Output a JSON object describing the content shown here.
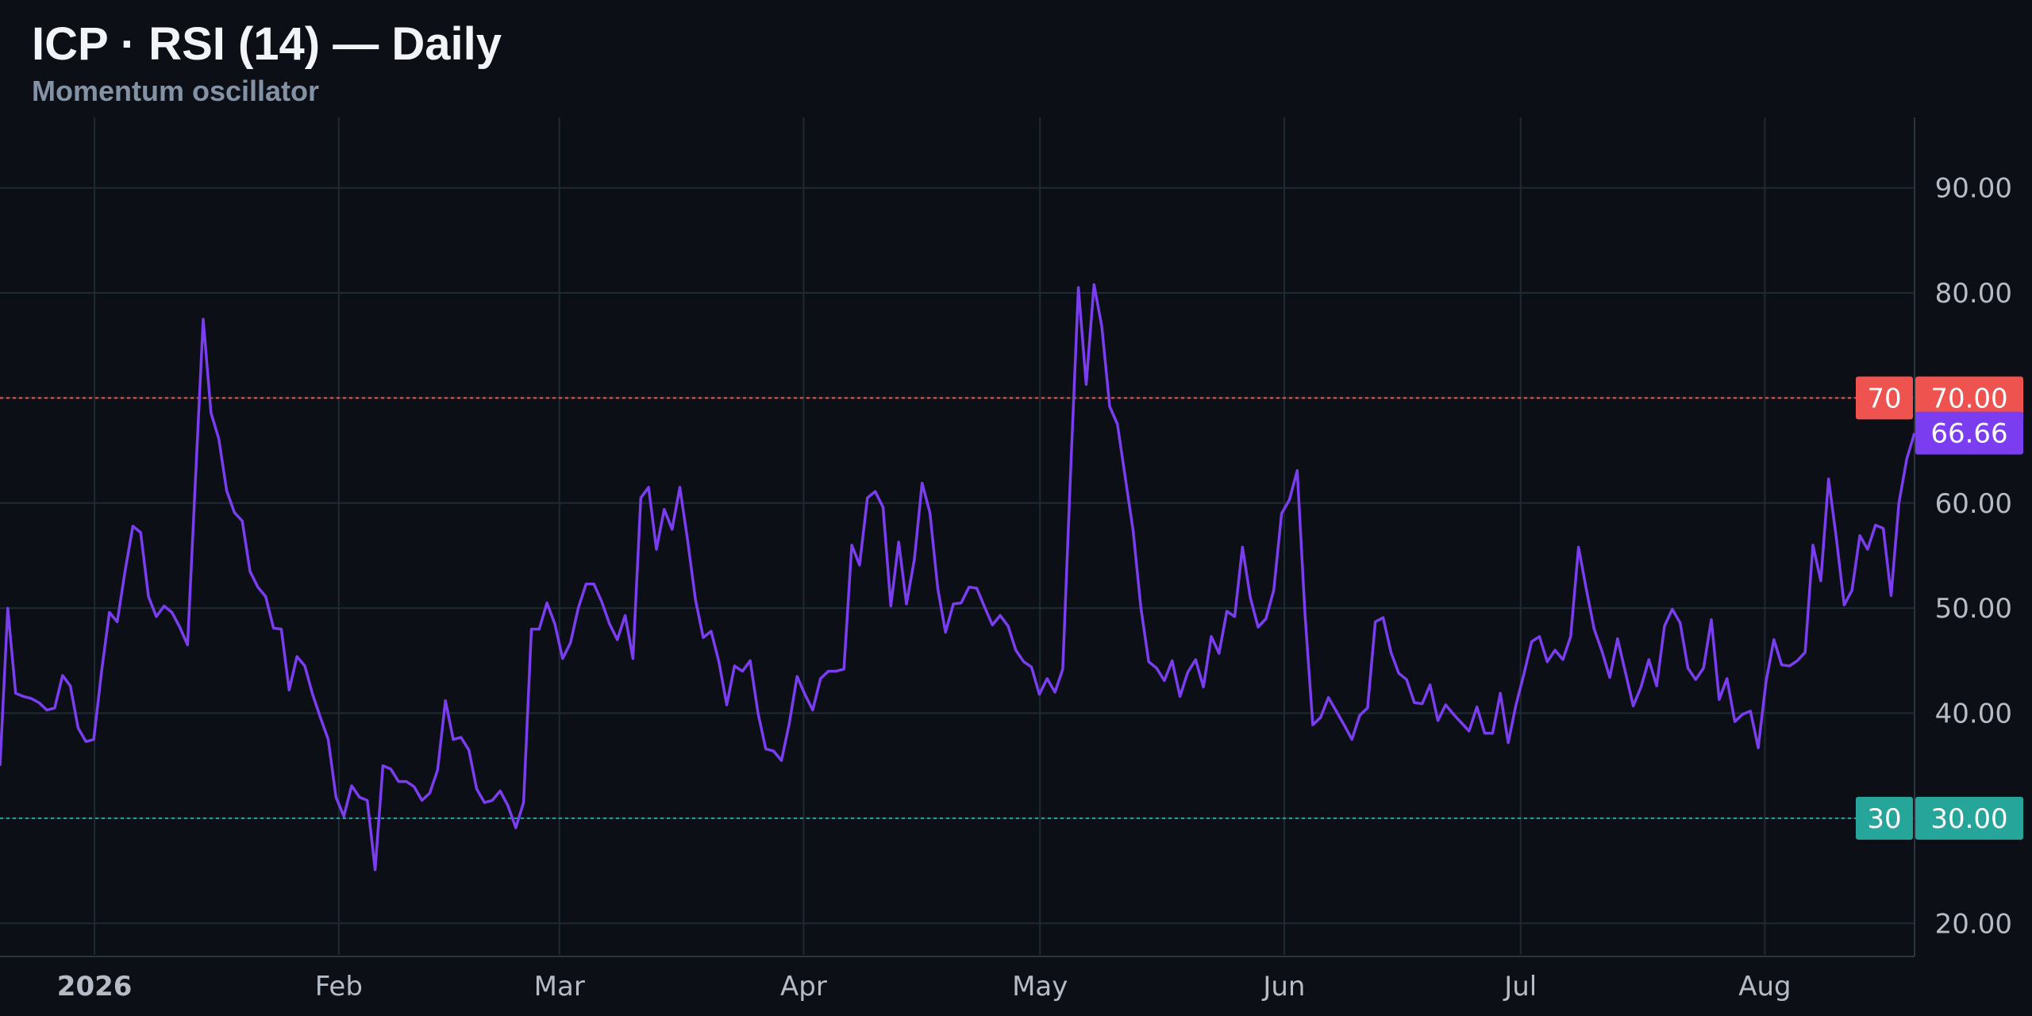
{
  "header": {
    "title": "ICP · RSI (14) — Daily",
    "subtitle": "Momentum oscillator"
  },
  "colors": {
    "background": "#0c0f16",
    "grid": "#1f2a33",
    "line": "#7b3df0",
    "overbought": "#ef5350",
    "oversold": "#26a69a",
    "axis_text": "#b6bcc6"
  },
  "chart_data": {
    "type": "line",
    "series": [
      {
        "x_start": "2025-12-20",
        "x_end": "2026-08-20",
        "values": [
          35.0,
          50.0,
          41.9,
          41.6,
          41.4,
          41.0,
          40.3,
          40.5,
          43.6,
          42.6,
          38.6,
          37.3,
          37.5,
          44.0,
          49.6,
          48.7,
          53.5,
          57.8,
          57.2,
          51.1,
          49.2,
          50.2,
          49.6,
          48.2,
          46.5,
          62.0,
          77.5,
          68.6,
          66.1,
          61.2,
          59.1,
          58.3,
          53.5,
          52.0,
          51.1,
          48.1,
          48.0,
          42.2,
          45.4,
          44.5,
          41.8,
          39.6,
          37.5,
          32.0,
          30.2,
          33.1,
          32.0,
          31.7,
          25.1,
          35.0,
          34.7,
          33.5,
          33.5,
          33.0,
          31.7,
          32.4,
          34.6,
          41.2,
          37.5,
          37.7,
          36.5,
          32.8,
          31.5,
          31.7,
          32.6,
          31.2,
          29.1,
          31.5,
          48.0,
          48.0,
          50.5,
          48.5,
          45.2,
          46.7,
          50.0,
          52.3,
          52.3,
          50.6,
          48.5,
          47.0,
          49.3,
          45.2,
          60.5,
          61.5,
          55.6,
          59.4,
          57.5,
          61.5,
          56.4,
          50.8,
          47.2,
          47.8,
          44.9,
          40.8,
          44.5,
          44.0,
          45.0,
          40.0,
          36.6,
          36.4,
          35.5,
          39.0,
          43.5,
          41.8,
          40.3,
          43.3,
          44.0,
          44.0,
          44.2,
          56.0,
          54.1,
          60.5,
          61.1,
          59.6,
          50.2,
          56.3,
          50.4,
          54.6,
          61.9,
          59.1,
          51.9,
          47.7,
          50.4,
          50.5,
          52.0,
          51.9,
          50.1,
          48.4,
          49.3,
          48.3,
          46.0,
          44.9,
          44.4,
          41.8,
          43.3,
          42.0,
          44.2,
          63.0,
          80.5,
          71.3,
          80.8,
          76.8,
          69.2,
          67.5,
          62.4,
          57.4,
          50.0,
          44.9,
          44.3,
          43.1,
          45.0,
          41.6,
          43.9,
          45.1,
          42.5,
          47.3,
          45.7,
          49.7,
          49.2,
          55.8,
          51.0,
          48.2,
          49.0,
          51.7,
          59.0,
          60.3,
          63.1,
          49.4,
          38.9,
          39.6,
          41.5,
          40.2,
          38.9,
          37.5,
          39.8,
          40.5,
          48.7,
          49.1,
          45.8,
          43.8,
          43.2,
          41.0,
          40.9,
          42.7,
          39.3,
          40.8,
          39.9,
          39.1,
          38.3,
          40.6,
          38.1,
          38.1,
          41.9,
          37.2,
          40.8,
          43.7,
          46.8,
          47.3,
          44.9,
          46.0,
          45.1,
          47.3,
          55.8,
          51.8,
          48.0,
          45.9,
          43.4,
          47.1,
          43.9,
          40.7,
          42.5,
          45.1,
          42.6,
          48.3,
          49.9,
          48.6,
          44.3,
          43.2,
          44.3,
          48.9,
          41.3,
          43.3,
          39.2,
          39.9,
          40.2,
          36.7,
          43.0,
          47.0,
          44.6,
          44.5,
          45.0,
          45.8,
          56.0,
          52.6,
          62.3,
          56.6,
          50.3,
          51.7,
          56.9,
          55.6,
          57.9,
          57.6,
          51.2,
          60.0,
          64.2,
          66.66
        ]
      }
    ],
    "x_tick_labels": [
      "2026",
      "Feb",
      "Mar",
      "Apr",
      "May",
      "Jun",
      "Jul",
      "Aug"
    ],
    "x_tick_dates": [
      "2026-01-01",
      "2026-02-01",
      "2026-03-01",
      "2026-04-01",
      "2026-05-01",
      "2026-06-01",
      "2026-07-01",
      "2026-08-01"
    ],
    "y_tick_labels": [
      "20.00",
      "30.00",
      "40.00",
      "50.00",
      "60.00",
      "70.00",
      "80.00",
      "90.00"
    ],
    "y_ticks": [
      20,
      30,
      40,
      50,
      60,
      70,
      80,
      90
    ],
    "ylim": [
      17,
      96.7
    ],
    "grid": true,
    "reference_lines": [
      {
        "value": 70,
        "label": "70",
        "price_label": "70.00"
      },
      {
        "value": 30,
        "label": "30",
        "price_label": "30.00"
      }
    ],
    "last_value_label": "66.66",
    "xlabel": "",
    "ylabel": ""
  }
}
